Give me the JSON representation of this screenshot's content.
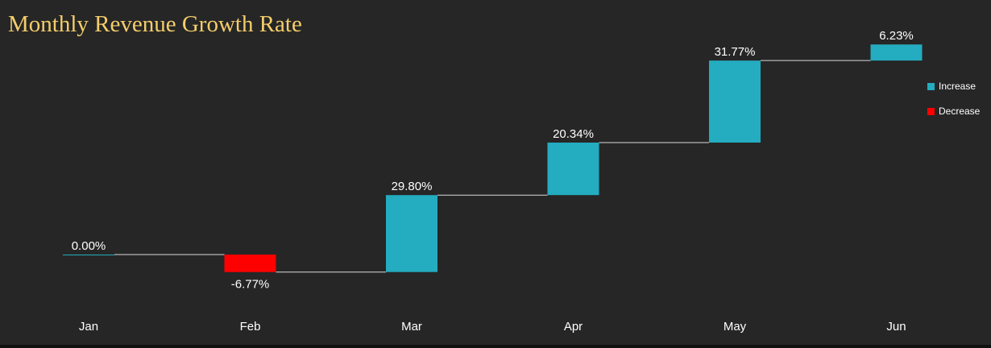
{
  "chart_data": {
    "type": "waterfall",
    "title": "Monthly Revenue Growth Rate",
    "categories": [
      "Jan",
      "Feb",
      "Mar",
      "Apr",
      "May",
      "Jun"
    ],
    "values": [
      0.0,
      -6.77,
      29.8,
      20.34,
      31.77,
      6.23
    ],
    "data_labels": [
      "0.00%",
      "-6.77%",
      "29.80%",
      "20.34%",
      "31.77%",
      "6.23%"
    ],
    "legend": [
      {
        "name": "Increase",
        "color": "#24acc0"
      },
      {
        "name": "Decrease",
        "color": "#ff0000"
      }
    ],
    "legend_placement": "right",
    "grid": false,
    "colors": {
      "background": "#262626",
      "title": "#f5cd6b",
      "increase": "#24acc0",
      "decrease": "#ff0000",
      "connector": "#d9d9d9"
    }
  }
}
